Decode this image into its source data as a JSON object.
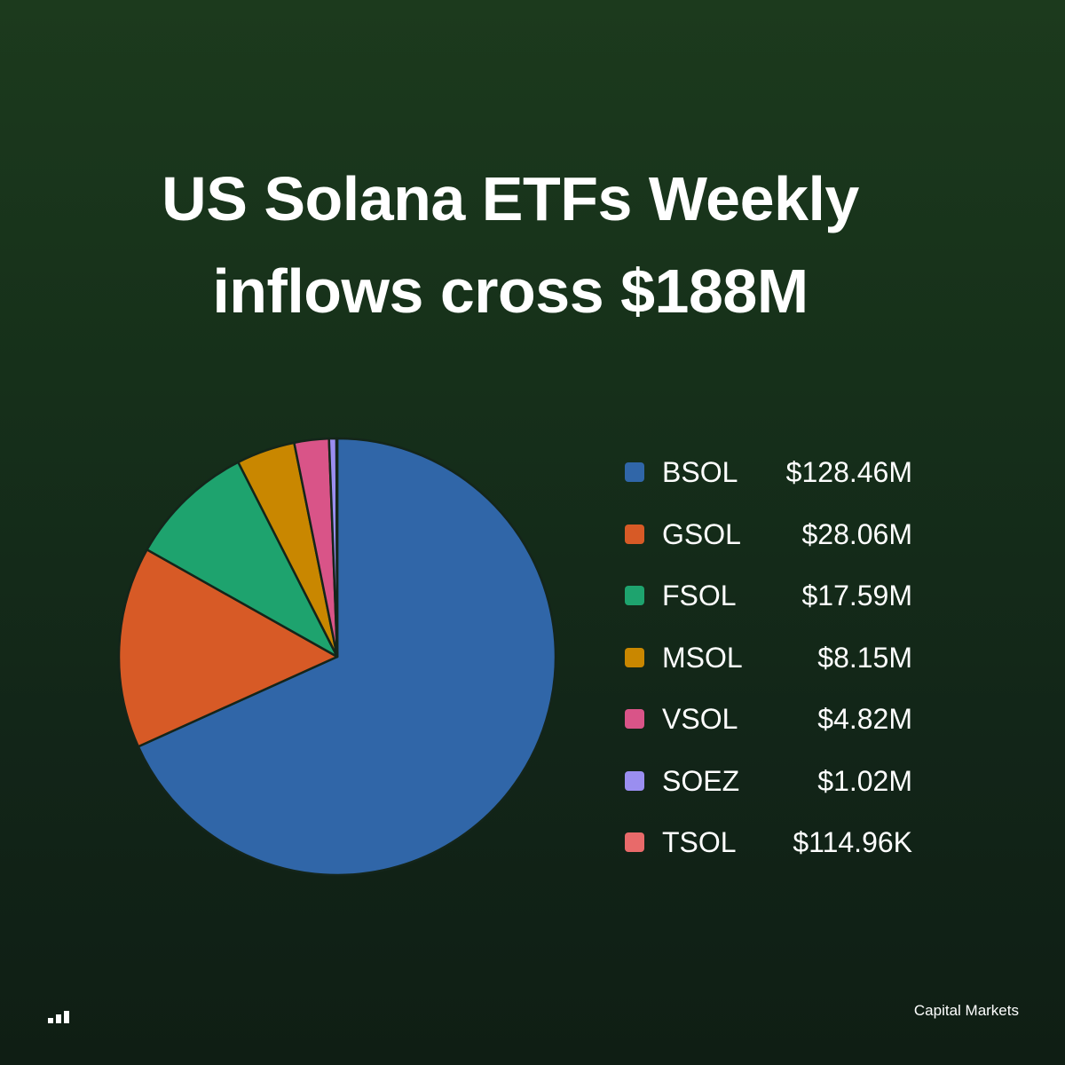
{
  "title": {
    "line1": "US Solana ETFs Weekly",
    "line2": "inflows cross $188M"
  },
  "footer": {
    "brand": "Capital Markets"
  },
  "icons": {
    "logo": "bar-chart-logo-icon"
  },
  "chart_data": {
    "type": "pie",
    "title": "US Solana ETFs Weekly inflows cross $188M",
    "legend_position": "right",
    "slices": [
      {
        "label": "BSOL",
        "value": 128.46,
        "value_label": "$128.46M",
        "color": "#3066a8"
      },
      {
        "label": "GSOL",
        "value": 28.06,
        "value_label": "$28.06M",
        "color": "#d75a26"
      },
      {
        "label": "FSOL",
        "value": 17.59,
        "value_label": "$17.59M",
        "color": "#1ea36e"
      },
      {
        "label": "MSOL",
        "value": 8.15,
        "value_label": "$8.15M",
        "color": "#c98700"
      },
      {
        "label": "VSOL",
        "value": 4.82,
        "value_label": "$4.82M",
        "color": "#d95488"
      },
      {
        "label": "SOEZ",
        "value": 1.02,
        "value_label": "$1.02M",
        "color": "#9a8ef0"
      },
      {
        "label": "TSOL",
        "value": 0.11496,
        "value_label": "$114.96K",
        "color": "#e86a6a"
      }
    ]
  }
}
